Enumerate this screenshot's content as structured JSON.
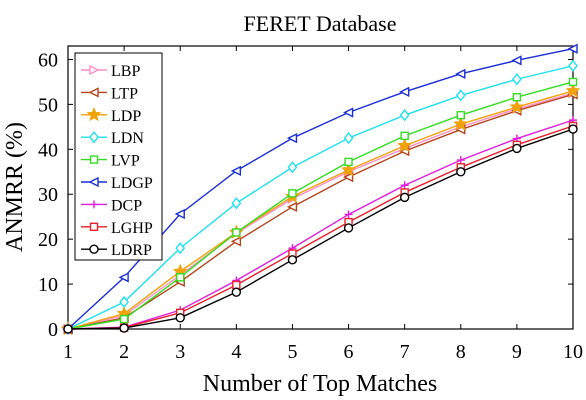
{
  "chart_data": {
    "type": "line",
    "title": "FERET Database",
    "xlabel": "Number of Top Matches",
    "ylabel": "ANMRR (%)",
    "x": [
      1,
      2,
      3,
      4,
      5,
      6,
      7,
      8,
      9,
      10
    ],
    "xlim": [
      1,
      10
    ],
    "ylim": [
      0,
      63
    ],
    "x_ticks": [
      "1",
      "2",
      "3",
      "4",
      "5",
      "6",
      "7",
      "8",
      "9",
      "10"
    ],
    "y_ticks": [
      {
        "value": 0,
        "label": "0"
      },
      {
        "value": 10,
        "label": "10"
      },
      {
        "value": 20,
        "label": "20"
      },
      {
        "value": 30,
        "label": "30"
      },
      {
        "value": 40,
        "label": "40"
      },
      {
        "value": 50,
        "label": "50"
      },
      {
        "value": 60,
        "label": "60"
      }
    ],
    "grid": false,
    "legend_position": "top-left",
    "series": [
      {
        "name": "LBP",
        "color": "#ff8ec8",
        "marker": "triangle-right",
        "values": [
          0,
          3.0,
          12.0,
          21.3,
          29.0,
          35.0,
          40.2,
          45.0,
          49.0,
          52.5
        ]
      },
      {
        "name": "LTP",
        "color": "#b5451b",
        "marker": "triangle-left",
        "values": [
          0,
          2.5,
          10.5,
          19.5,
          27.2,
          33.8,
          39.6,
          44.4,
          48.6,
          52.2
        ]
      },
      {
        "name": "LDP",
        "color": "#f0a30a",
        "marker": "star",
        "values": [
          0,
          3.4,
          12.8,
          21.5,
          29.5,
          35.4,
          40.8,
          45.6,
          49.4,
          53.0
        ]
      },
      {
        "name": "LDN",
        "color": "#1fe0f0",
        "marker": "diamond",
        "values": [
          0,
          6.0,
          18.0,
          28.0,
          36.0,
          42.5,
          47.6,
          52.0,
          55.6,
          58.6
        ]
      },
      {
        "name": "LVP",
        "color": "#33dd22",
        "marker": "square",
        "values": [
          0,
          2.2,
          11.5,
          21.5,
          30.2,
          37.2,
          43.0,
          47.6,
          51.6,
          55.0
        ]
      },
      {
        "name": "LDGP",
        "color": "#1a2fd6",
        "marker": "triangle-left",
        "values": [
          0,
          11.5,
          25.6,
          35.2,
          42.5,
          48.2,
          52.8,
          56.8,
          59.8,
          62.4
        ]
      },
      {
        "name": "DCP",
        "color": "#e01ee0",
        "marker": "plus",
        "values": [
          0,
          0.4,
          4.2,
          10.8,
          18.0,
          25.5,
          32.0,
          37.6,
          42.4,
          46.5
        ]
      },
      {
        "name": "LGHP",
        "color": "#e8202a",
        "marker": "square",
        "values": [
          0,
          0.3,
          3.6,
          9.8,
          16.8,
          23.8,
          30.4,
          36.0,
          41.0,
          45.2
        ]
      },
      {
        "name": "LDRP",
        "color": "#000000",
        "marker": "circle",
        "values": [
          0,
          0.2,
          2.5,
          8.2,
          15.4,
          22.5,
          29.3,
          35.0,
          40.2,
          44.5
        ]
      }
    ]
  }
}
